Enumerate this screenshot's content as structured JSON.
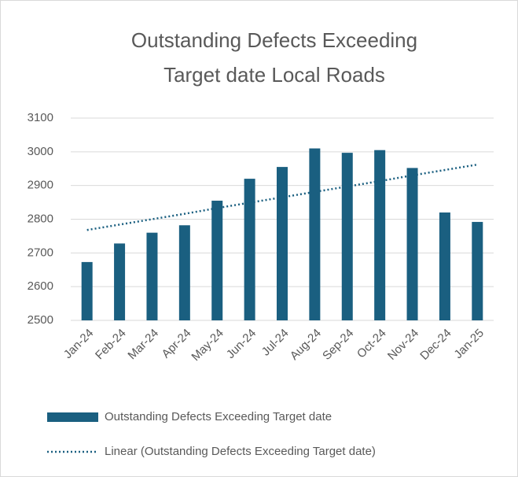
{
  "chart_data": {
    "type": "bar",
    "title": [
      "Outstanding Defects Exceeding",
      "Target date Local Roads"
    ],
    "categories": [
      "Jan-24",
      "Feb-24",
      "Mar-24",
      "Apr-24",
      "May-24",
      "Jun-24",
      "Jul-24",
      "Aug-24",
      "Sep-24",
      "Oct-24",
      "Nov-24",
      "Dec-24",
      "Jan-25"
    ],
    "series": [
      {
        "name": "Outstanding Defects Exceeding Target date",
        "type": "bar",
        "color": "#1a5f80",
        "values": [
          2673,
          2728,
          2760,
          2782,
          2855,
          2920,
          2955,
          3010,
          2997,
          3005,
          2952,
          2820,
          2792
        ]
      },
      {
        "name": "Linear (Outstanding Defects Exceeding Target date)",
        "type": "line",
        "color": "#1a5f80",
        "values": [
          2768,
          2784,
          2800,
          2816,
          2833,
          2849,
          2865,
          2881,
          2897,
          2913,
          2930,
          2946,
          2962
        ]
      }
    ],
    "ylim": [
      2500,
      3100
    ],
    "yticks": [
      2500,
      2600,
      2700,
      2800,
      2900,
      3000,
      3100
    ],
    "grid": true,
    "legend": "bottom"
  }
}
